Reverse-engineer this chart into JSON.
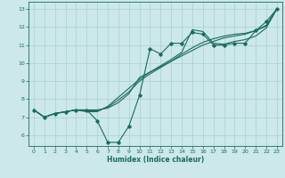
{
  "xlabel": "Humidex (Indice chaleur)",
  "bg_color": "#cce8e8",
  "grid_color": "#aacfcf",
  "line_color": "#1a6b60",
  "xlim": [
    -0.5,
    23.5
  ],
  "ylim": [
    5.4,
    13.4
  ],
  "xticks": [
    0,
    1,
    2,
    3,
    4,
    5,
    6,
    7,
    8,
    9,
    10,
    11,
    12,
    13,
    14,
    15,
    16,
    17,
    18,
    19,
    20,
    21,
    22,
    23
  ],
  "yticks": [
    6,
    7,
    8,
    9,
    10,
    11,
    12,
    13
  ],
  "line1_x": [
    0,
    1,
    2,
    3,
    4,
    5,
    6,
    7,
    8,
    9,
    10,
    11,
    12,
    13,
    14,
    15,
    16,
    17,
    18,
    19,
    20,
    21,
    22,
    23
  ],
  "line1_y": [
    7.4,
    7.0,
    7.2,
    7.3,
    7.4,
    7.4,
    6.8,
    5.6,
    5.6,
    6.5,
    8.2,
    10.8,
    10.5,
    11.1,
    11.1,
    11.7,
    11.6,
    11.0,
    11.0,
    11.1,
    11.1,
    11.8,
    12.3,
    13.0
  ],
  "line2_x": [
    0,
    1,
    2,
    3,
    4,
    5,
    6,
    7,
    8,
    9,
    10,
    11,
    12,
    13,
    14,
    15,
    16,
    17,
    18,
    19,
    20,
    21,
    22,
    23
  ],
  "line2_y": [
    7.4,
    7.0,
    7.2,
    7.3,
    7.4,
    7.4,
    7.4,
    7.5,
    7.8,
    8.3,
    9.2,
    9.5,
    9.8,
    10.1,
    10.4,
    10.7,
    11.0,
    11.2,
    11.4,
    11.5,
    11.6,
    11.8,
    12.1,
    13.0
  ],
  "line3_x": [
    0,
    1,
    2,
    3,
    4,
    5,
    6,
    7,
    8,
    9,
    10,
    11,
    12,
    13,
    14,
    15,
    16,
    17,
    18,
    19,
    20,
    21,
    22,
    23
  ],
  "line3_y": [
    7.4,
    7.0,
    7.2,
    7.3,
    7.4,
    7.35,
    7.35,
    7.55,
    7.95,
    8.4,
    9.0,
    9.4,
    9.75,
    10.1,
    10.5,
    10.85,
    11.15,
    11.35,
    11.5,
    11.6,
    11.65,
    11.8,
    12.05,
    13.0
  ],
  "line4_x": [
    0,
    1,
    2,
    3,
    4,
    5,
    6,
    7,
    8,
    9,
    10,
    11,
    12,
    13,
    14,
    15,
    16,
    17,
    18,
    19,
    20,
    21,
    22,
    23
  ],
  "line4_y": [
    7.4,
    7.0,
    7.2,
    7.3,
    7.4,
    7.3,
    7.3,
    7.6,
    8.1,
    8.6,
    9.1,
    9.5,
    9.85,
    10.2,
    10.6,
    11.85,
    11.75,
    11.1,
    11.05,
    11.2,
    11.3,
    11.5,
    11.95,
    13.0
  ]
}
